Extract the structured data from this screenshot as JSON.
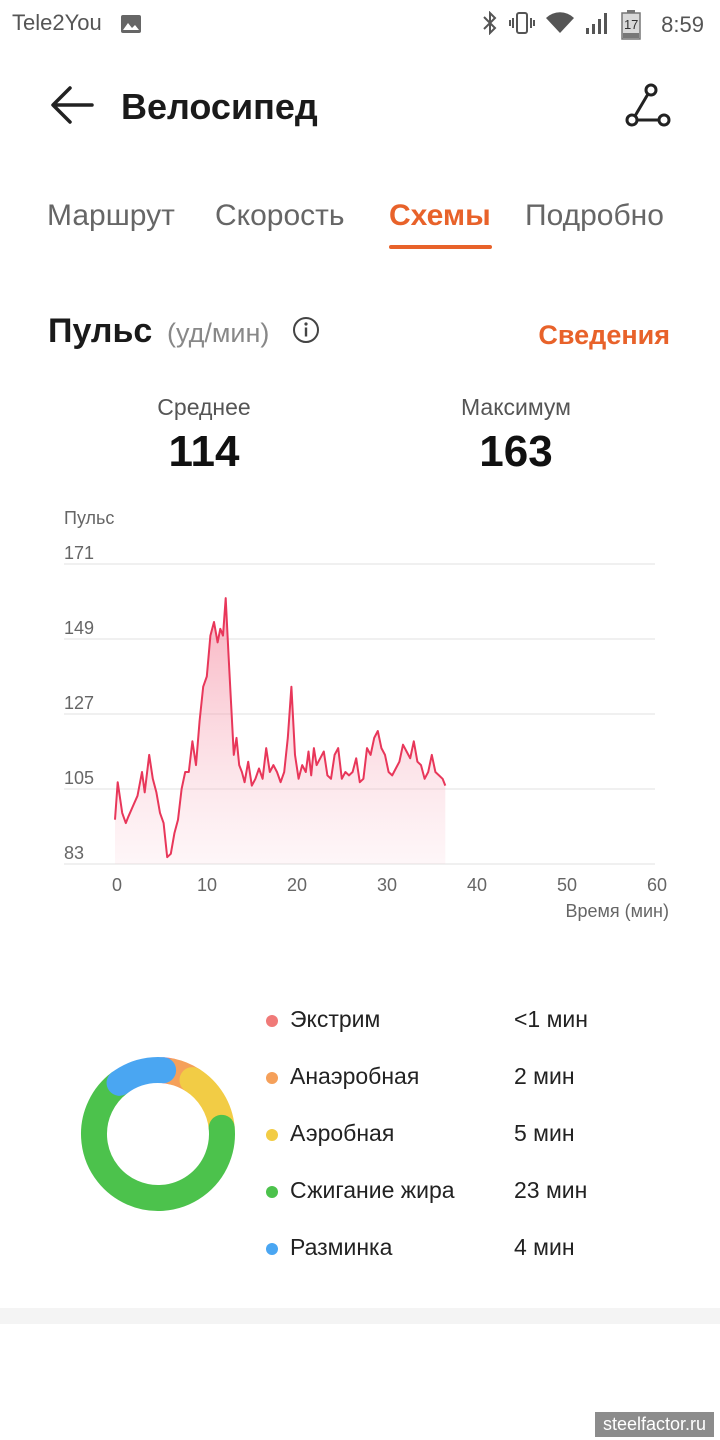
{
  "status_bar": {
    "carrier": "Tele2You",
    "battery_level": "17",
    "time": "8:59",
    "icons": [
      "image-icon",
      "bluetooth-icon",
      "vibrate-icon",
      "wifi-icon",
      "signal-icon",
      "battery-icon"
    ]
  },
  "header": {
    "title": "Велосипед"
  },
  "tabs": [
    {
      "label": "Маршрут",
      "active": false
    },
    {
      "label": "Скорость",
      "active": false
    },
    {
      "label": "Схемы",
      "active": true
    },
    {
      "label": "Подробно",
      "active": false
    }
  ],
  "pulse": {
    "title": "Пульс",
    "unit": "(уд/мин)",
    "details_link": "Сведения",
    "average_label": "Среднее",
    "average_value": "114",
    "max_label": "Максимум",
    "max_value": "163"
  },
  "chart_data": {
    "type": "area",
    "ylabel": "Пульс",
    "xlabel": "Время (мин)",
    "ylim": [
      83,
      171
    ],
    "xlim": [
      0,
      60
    ],
    "yticks": [
      "171",
      "149",
      "127",
      "105",
      "83"
    ],
    "xticks": [
      "0",
      "10",
      "20",
      "30",
      "40",
      "50",
      "60"
    ],
    "grid": true,
    "line_color": "#e8375a",
    "series": [
      {
        "x": [
          0,
          0.3,
          0.8,
          1.2,
          1.5,
          2,
          2.5,
          3,
          3.3,
          3.8,
          4.2,
          4.6,
          5,
          5.4,
          5.8,
          6.2,
          6.6,
          7,
          7.4,
          7.8,
          8.2,
          8.6,
          9,
          9.4,
          9.8,
          10.2,
          10.6,
          11,
          11.4,
          11.7,
          12,
          12.3,
          12.6,
          12.9,
          13.2,
          13.5,
          13.8,
          14.1,
          14.4,
          14.8,
          15.2,
          15.6,
          16,
          16.4,
          16.8,
          17.2,
          17.6,
          18,
          18.4,
          18.8,
          19.2,
          19.6,
          20,
          20.4,
          20.8,
          21.2,
          21.5,
          21.8,
          22.1,
          22.4,
          22.8,
          23.2,
          23.6,
          24,
          24.4,
          24.8,
          25.2,
          25.6,
          26,
          26.4,
          26.8,
          27.2,
          27.6,
          28,
          28.4,
          28.8,
          29.2,
          29.6,
          30,
          30.4,
          30.8,
          31.2,
          31.6,
          32,
          32.4,
          32.8,
          33.2,
          33.6,
          34,
          34.4,
          34.8,
          35.2,
          35.6,
          36,
          36.4,
          36.7
        ],
        "y": [
          96,
          107,
          98,
          95,
          97,
          100,
          103,
          110,
          104,
          115,
          108,
          104,
          98,
          95,
          85,
          86,
          92,
          96,
          105,
          110,
          110,
          119,
          112,
          125,
          135,
          138,
          150,
          154,
          148,
          152,
          150,
          161,
          145,
          130,
          115,
          120,
          112,
          110,
          107,
          113,
          106,
          108,
          111,
          108,
          117,
          110,
          112,
          110,
          107,
          110,
          120,
          135,
          115,
          108,
          112,
          110,
          116,
          109,
          117,
          112,
          114,
          116,
          109,
          108,
          115,
          117,
          108,
          110,
          109,
          110,
          114,
          107,
          108,
          117,
          115,
          120,
          122,
          117,
          115,
          110,
          109,
          111,
          113,
          118,
          116,
          114,
          119,
          113,
          112,
          108,
          110,
          115,
          110,
          109,
          108,
          106
        ]
      }
    ]
  },
  "zones": [
    {
      "name": "Экстрим",
      "time": "<1 мин",
      "color": "#f07a78"
    },
    {
      "name": "Анаэробная",
      "time": "2 мин",
      "color": "#f5a05a"
    },
    {
      "name": "Аэробная",
      "time": "5 мин",
      "color": "#f2cc45"
    },
    {
      "name": "Сжигание жира",
      "time": "23 мин",
      "color": "#4cc24c"
    },
    {
      "name": "Разминка",
      "time": "4 мин",
      "color": "#4aa6f2"
    }
  ],
  "watermark": "steelfactor.ru",
  "colors": {
    "accent": "#e8622a"
  }
}
